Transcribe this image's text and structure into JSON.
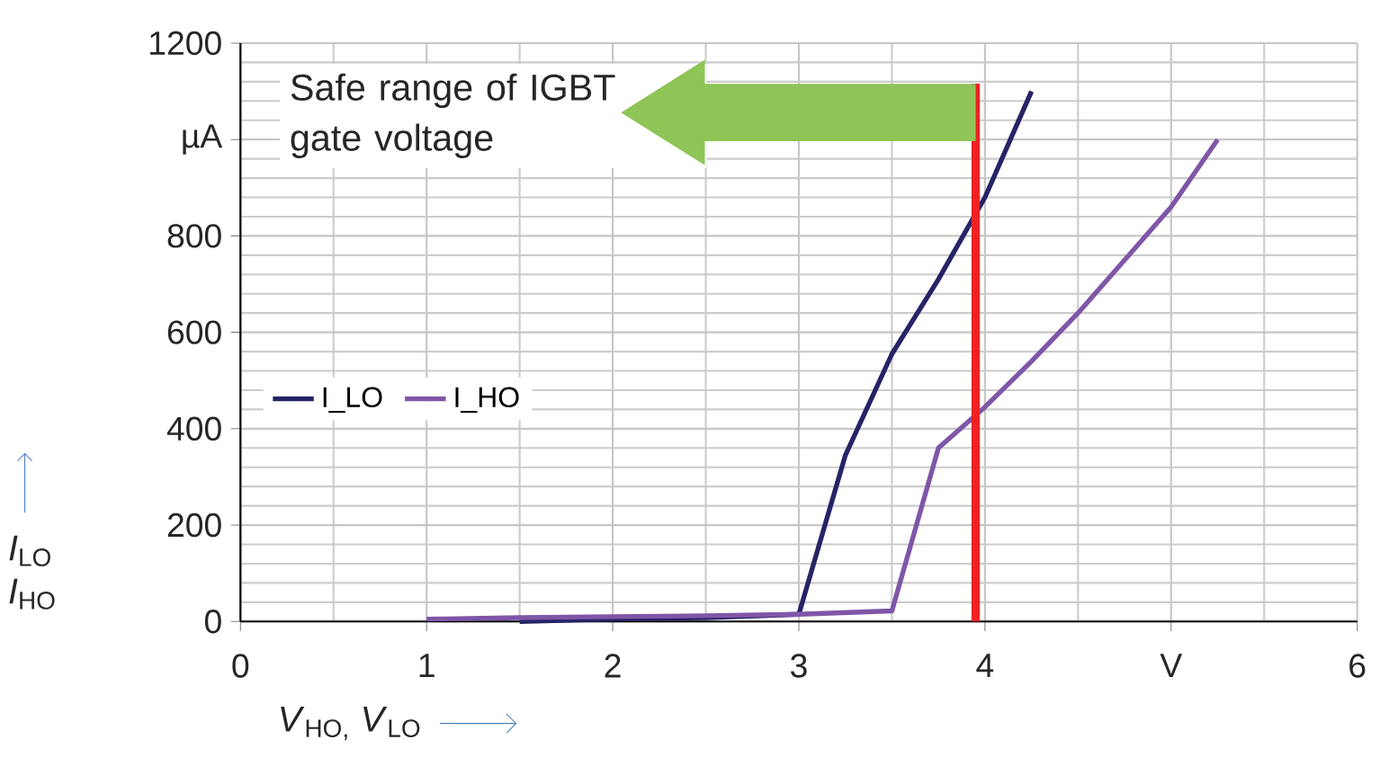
{
  "chart_data": {
    "type": "line",
    "xlabel": "*V*$_{HO,}$ *V*$_{LO}$",
    "ylabel": "*I*$_{LO}$ *I*$_{HO}$",
    "annotations": [
      "Safe  range of IGBT gate voltage"
    ],
    "series": [
      {
        "name": "I_LO",
        "color": "#262367",
        "x": [
          1.5,
          2,
          2.5,
          3,
          3.25,
          3.5,
          3.75,
          4,
          4.25
        ],
        "values": [
          0,
          5,
          8,
          15,
          345,
          555,
          710,
          880,
          1100
        ]
      },
      {
        "name": "I_HO",
        "color": "#7f56a8",
        "x": [
          1,
          1.5,
          2,
          2.5,
          3,
          3.5,
          3.75,
          4,
          4.25,
          4.5,
          4.75,
          5,
          5.25
        ],
        "values": [
          5,
          8,
          10,
          12,
          15,
          22,
          360,
          445,
          540,
          640,
          750,
          860,
          1000
        ]
      }
    ],
    "xlim": [
      0,
      6
    ],
    "xticks": [
      0,
      1,
      2,
      3,
      4,
      {
        "value": 5,
        "label": "V"
      },
      6
    ],
    "ylim": [
      0,
      1200
    ],
    "yticks": [
      0,
      200,
      400,
      600,
      800,
      {
        "value": 1000,
        "label": "µA"
      },
      1200
    ],
    "ref_lines": [
      {
        "axis": "x",
        "value": 3.95,
        "color": "#ee2222"
      }
    ],
    "grid": true,
    "legend": "left",
    "marker": "none",
    "line_style": "solid"
  }
}
